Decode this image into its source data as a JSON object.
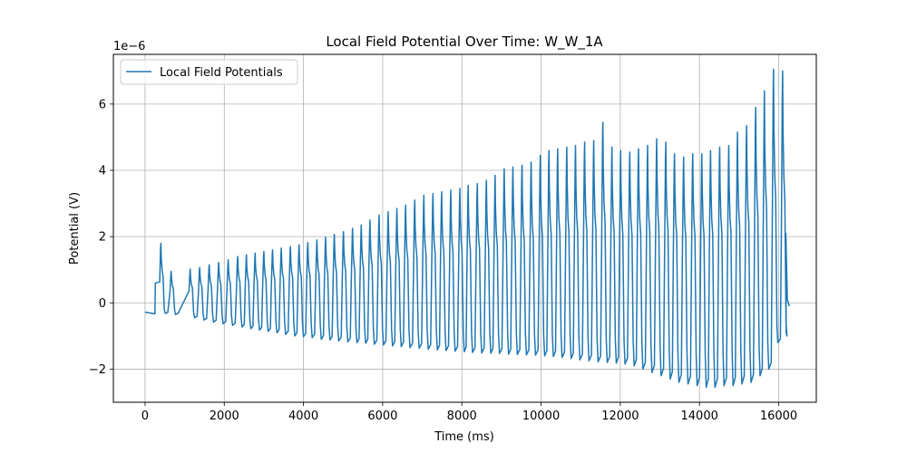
{
  "chart_data": {
    "type": "line",
    "title": "Local Field Potential Over Time: W_W_1A",
    "xlabel": "Time (ms)",
    "ylabel": "Potential (V)",
    "y_offset_label": "1e−6",
    "xlim": [
      -800,
      16950
    ],
    "ylim": [
      -3e-06,
      7.5e-06
    ],
    "xticks": [
      0,
      2000,
      4000,
      6000,
      8000,
      10000,
      12000,
      14000,
      16000
    ],
    "xtick_labels": [
      "0",
      "2000",
      "4000",
      "6000",
      "8000",
      "10000",
      "12000",
      "14000",
      "16000"
    ],
    "yticks": [
      -2e-06,
      0,
      2e-06,
      4e-06,
      6e-06
    ],
    "ytick_labels": [
      "−2",
      "0",
      "2",
      "4",
      "6"
    ],
    "grid": true,
    "legend_position": "top-left",
    "series": [
      {
        "name": "Local Field Potentials",
        "color": "#1f77b4",
        "baseline_start": {
          "x": [
            0,
            250
          ],
          "y": [
            -2.8e-07,
            -3.3e-07
          ]
        },
        "burst_start_ms": 260,
        "burst_end_ms": 16270,
        "peak_times_ms": [
          400,
          660,
          1140,
          1380,
          1620,
          1860,
          2100,
          2340,
          2560,
          2780,
          3000,
          3220,
          3440,
          3670,
          3890,
          4110,
          4340,
          4560,
          4780,
          5010,
          5240,
          5460,
          5680,
          5910,
          6140,
          6360,
          6580,
          6810,
          7040,
          7270,
          7490,
          7720,
          7950,
          8160,
          8390,
          8620,
          8840,
          9070,
          9290,
          9520,
          9750,
          9980,
          10200,
          10420,
          10650,
          10870,
          11100,
          11330,
          11560,
          11790,
          12010,
          12240,
          12460,
          12690,
          12920,
          13150,
          13370,
          13600,
          13830,
          14060,
          14280,
          14510,
          14740,
          14960,
          15190,
          15420,
          15640,
          15870,
          16100
        ],
        "peak_values": [
          1.8e-06,
          9.5e-07,
          1.02e-06,
          1.07e-06,
          1.15e-06,
          1.22e-06,
          1.3e-06,
          1.4e-06,
          1.45e-06,
          1.5e-06,
          1.55e-06,
          1.6e-06,
          1.65e-06,
          1.7e-06,
          1.75e-06,
          1.82e-06,
          1.9e-06,
          1.98e-06,
          2.07e-06,
          2.15e-06,
          2.25e-06,
          2.35e-06,
          2.5e-06,
          2.65e-06,
          2.75e-06,
          2.85e-06,
          2.95e-06,
          3.1e-06,
          3.25e-06,
          3.3e-06,
          3.35e-06,
          3.4e-06,
          3.45e-06,
          3.55e-06,
          3.6e-06,
          3.7e-06,
          3.85e-06,
          4.05e-06,
          4.1e-06,
          4.15e-06,
          4.25e-06,
          4.45e-06,
          4.6e-06,
          4.65e-06,
          4.7e-06,
          4.75e-06,
          4.85e-06,
          4.9e-06,
          5.45e-06,
          4.7e-06,
          4.6e-06,
          4.55e-06,
          4.65e-06,
          4.75e-06,
          4.95e-06,
          4.85e-06,
          4.5e-06,
          4.4e-06,
          4.5e-06,
          4.5e-06,
          4.6e-06,
          4.7e-06,
          4.75e-06,
          5.15e-06,
          5.35e-06,
          5.9e-06,
          6.4e-06,
          7.05e-06,
          7e-06
        ],
        "trough_values": [
          -3.2e-07,
          -3.5e-07,
          -4.5e-07,
          -5.2e-07,
          -5.8e-07,
          -6.3e-07,
          -6.8e-07,
          -7.3e-07,
          -7.8e-07,
          -8.2e-07,
          -8.6e-07,
          -9e-07,
          -9.5e-07,
          -1e-06,
          -1.02e-06,
          -1.05e-06,
          -1.1e-06,
          -1.12e-06,
          -1.15e-06,
          -1.18e-06,
          -1.2e-06,
          -1.22e-06,
          -1.25e-06,
          -1.27e-06,
          -1.3e-06,
          -1.32e-06,
          -1.35e-06,
          -1.37e-06,
          -1.4e-06,
          -1.42e-06,
          -1.44e-06,
          -1.46e-06,
          -1.48e-06,
          -1.5e-06,
          -1.51e-06,
          -1.52e-06,
          -1.53e-06,
          -1.55e-06,
          -1.56e-06,
          -1.57e-06,
          -1.58e-06,
          -1.6e-06,
          -1.62e-06,
          -1.65e-06,
          -1.68e-06,
          -1.72e-06,
          -1.75e-06,
          -1.78e-06,
          -1.8e-06,
          -1.82e-06,
          -1.85e-06,
          -1.9e-06,
          -2e-06,
          -2.1e-06,
          -2.2e-06,
          -2.3e-06,
          -2.4e-06,
          -2.45e-06,
          -2.5e-06,
          -2.55e-06,
          -2.55e-06,
          -2.5e-06,
          -2.5e-06,
          -2.45e-06,
          -2.4e-06,
          -2.2e-06,
          -2e-06,
          -1.2e-06,
          -1e-06
        ],
        "end_values": {
          "x": [
            16180,
            16220,
            16270
          ],
          "y": [
            2.1e-06,
            1e-07,
            -1e-07
          ]
        }
      }
    ]
  }
}
